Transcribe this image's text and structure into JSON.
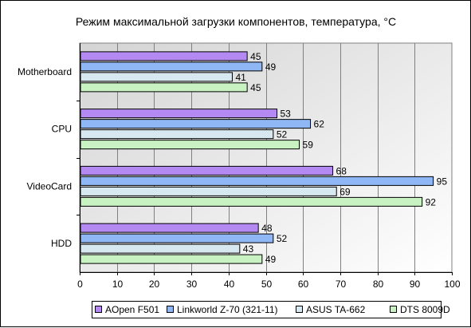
{
  "chart_data": {
    "type": "bar",
    "orientation": "horizontal",
    "title": "Режим максимальной загрузки компонентов, температура, °C",
    "categories": [
      "Motherboard",
      "CPU",
      "VideoCard",
      "HDD"
    ],
    "series": [
      {
        "name": "AOpen F501",
        "values": [
          45,
          53,
          68,
          48
        ],
        "color": "#b589f2"
      },
      {
        "name": "Linkworld Z-70 (321-11)",
        "values": [
          49,
          62,
          95,
          52
        ],
        "color": "#8fb6f5"
      },
      {
        "name": "ASUS TA-662",
        "values": [
          41,
          52,
          69,
          43
        ],
        "color": "#d8e8f0"
      },
      {
        "name": "DTS 8009D",
        "values": [
          45,
          59,
          92,
          49
        ],
        "color": "#c8f2c2"
      }
    ],
    "xlim": [
      0,
      100
    ],
    "xticks": [
      0,
      10,
      20,
      30,
      40,
      50,
      60,
      70,
      80,
      90,
      100
    ],
    "grid": true,
    "legend": "bottom",
    "plot_background": "gradient light gray to white"
  }
}
